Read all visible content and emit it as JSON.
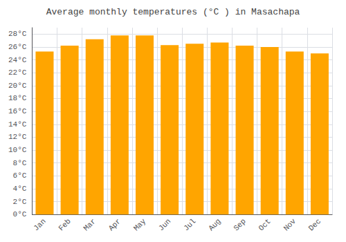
{
  "chart_data": {
    "type": "bar",
    "title": "Average monthly temperatures (°C ) in Masachapa",
    "categories": [
      "Jan",
      "Feb",
      "Mar",
      "Apr",
      "May",
      "Jun",
      "Jul",
      "Aug",
      "Sep",
      "Oct",
      "Nov",
      "Dec"
    ],
    "values": [
      25.3,
      26.2,
      27.2,
      27.8,
      27.8,
      26.3,
      26.5,
      26.7,
      26.2,
      26.0,
      25.3,
      25.0
    ],
    "color": "#FFA500",
    "ylim": [
      0,
      29
    ],
    "yticks": [
      {
        "value": 0,
        "label": "0°C"
      },
      {
        "value": 2,
        "label": "2°C"
      },
      {
        "value": 4,
        "label": "4°C"
      },
      {
        "value": 6,
        "label": "6°C"
      },
      {
        "value": 8,
        "label": "8°C"
      },
      {
        "value": 10,
        "label": "10°C"
      },
      {
        "value": 12,
        "label": "12°C"
      },
      {
        "value": 14,
        "label": "14°C"
      },
      {
        "value": 16,
        "label": "16°C"
      },
      {
        "value": 18,
        "label": "18°C"
      },
      {
        "value": 20,
        "label": "20°C"
      },
      {
        "value": 22,
        "label": "22°C"
      },
      {
        "value": 24,
        "label": "24°C"
      },
      {
        "value": 26,
        "label": "26°C"
      },
      {
        "value": 28,
        "label": "28°C"
      }
    ],
    "grid": true
  }
}
